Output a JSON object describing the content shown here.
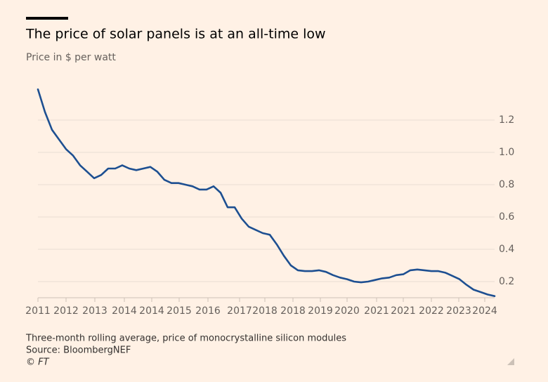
{
  "chart_data": {
    "type": "line",
    "title": "The price of solar panels is at an all-time low",
    "subtitle": "Price in $ per watt",
    "notes": [
      "Three-month rolling average, price of monocrystalline silicon modules",
      "Source: BloombergNEF",
      "© FT"
    ],
    "x": [
      0,
      1,
      2,
      3,
      4,
      5,
      6,
      7,
      8,
      9,
      10,
      11,
      12,
      13,
      14,
      15,
      16,
      17,
      18,
      19,
      20,
      21,
      22,
      23,
      24,
      25,
      26,
      27,
      28,
      29,
      30,
      31,
      32,
      33,
      34,
      35,
      36,
      37,
      38,
      39,
      40,
      41,
      42,
      43,
      44,
      45,
      46,
      47,
      48,
      49,
      50,
      51,
      52,
      53,
      54,
      55,
      56,
      57,
      58,
      59,
      60,
      61,
      62,
      63,
      64,
      65
    ],
    "series": [
      {
        "name": "Price",
        "color": "#1d4f91",
        "values": [
          1.39,
          1.25,
          1.14,
          1.08,
          1.02,
          0.98,
          0.92,
          0.88,
          0.84,
          0.86,
          0.9,
          0.9,
          0.92,
          0.9,
          0.89,
          0.9,
          0.91,
          0.88,
          0.83,
          0.81,
          0.81,
          0.8,
          0.79,
          0.77,
          0.77,
          0.79,
          0.75,
          0.66,
          0.66,
          0.59,
          0.54,
          0.52,
          0.5,
          0.49,
          0.43,
          0.36,
          0.3,
          0.27,
          0.265,
          0.265,
          0.27,
          0.26,
          0.24,
          0.225,
          0.215,
          0.2,
          0.195,
          0.2,
          0.21,
          0.22,
          0.225,
          0.24,
          0.245,
          0.27,
          0.275,
          0.27,
          0.265,
          0.265,
          0.255,
          0.235,
          0.215,
          0.18,
          0.15,
          0.135,
          0.12,
          0.11
        ]
      }
    ],
    "xlim": [
      0,
      65
    ],
    "xticks": [
      {
        "value": 0,
        "label": "2011"
      },
      {
        "value": 4,
        "label": "2012"
      },
      {
        "value": 8.1,
        "label": "2013"
      },
      {
        "value": 12.3,
        "label": "2014"
      },
      {
        "value": 16.2,
        "label": "2014"
      },
      {
        "value": 20.1,
        "label": "2015"
      },
      {
        "value": 24.2,
        "label": "2016"
      },
      {
        "value": 28.7,
        "label": "2017"
      },
      {
        "value": 32.3,
        "label": "2018"
      },
      {
        "value": 36.3,
        "label": "2018"
      },
      {
        "value": 40.2,
        "label": "2019"
      },
      {
        "value": 44,
        "label": "2020"
      },
      {
        "value": 48.2,
        "label": "2021"
      },
      {
        "value": 52,
        "label": "2021"
      },
      {
        "value": 56,
        "label": "2022"
      },
      {
        "value": 59.9,
        "label": "2023"
      },
      {
        "value": 63.6,
        "label": "2024"
      }
    ],
    "ylim": [
      0.1,
      1.4
    ],
    "yticks": [
      0.2,
      0.4,
      0.6,
      0.8,
      {
        "value": 1,
        "label": "1.0"
      },
      1.2
    ],
    "grid": true
  }
}
